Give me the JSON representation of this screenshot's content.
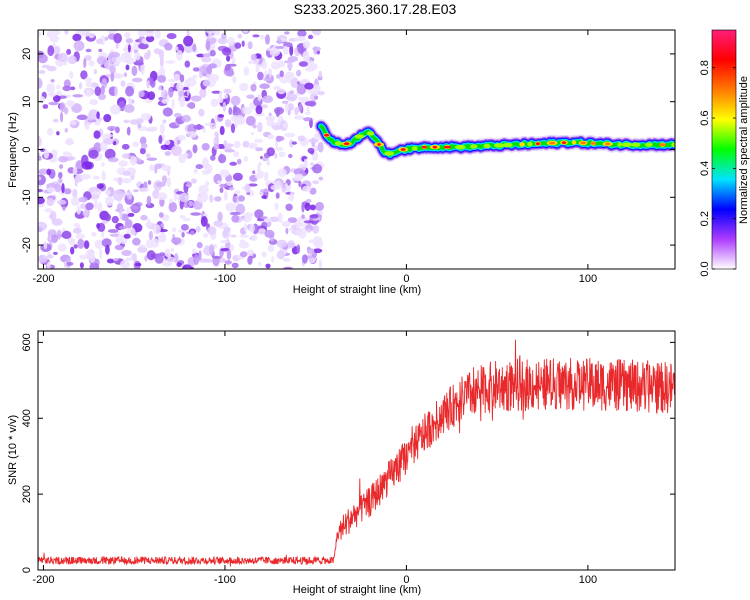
{
  "title": "S233.2025.360.17.28.E03",
  "chart_data": [
    {
      "type": "heatmap",
      "name": "spectrogram",
      "xlabel": "Height of straight line (km)",
      "ylabel": "Frequency (Hz)",
      "xlim": [
        -203,
        148
      ],
      "ylim": [
        -25,
        25
      ],
      "xticks": [
        -200,
        -100,
        0,
        100
      ],
      "xtick_labels": [
        "-200",
        "-100",
        "0",
        "100"
      ],
      "yticks": [
        -20,
        -10,
        0,
        10,
        20
      ],
      "ytick_labels": [
        "-20",
        "-10",
        "0",
        "10",
        "20"
      ],
      "noise_region_x": [
        -203,
        -47
      ],
      "line_center_hz": [
        [
          -47,
          5
        ],
        [
          -44,
          3
        ],
        [
          -40,
          1.5
        ],
        [
          -35,
          1
        ],
        [
          -30,
          1.5
        ],
        [
          -25,
          3
        ],
        [
          -21,
          4
        ],
        [
          -18,
          2.5
        ],
        [
          -15,
          1
        ],
        [
          -12,
          -0.5
        ],
        [
          -8,
          -1
        ],
        [
          -4,
          0
        ],
        [
          0,
          0
        ],
        [
          10,
          0.5
        ],
        [
          30,
          0.5
        ],
        [
          60,
          1
        ],
        [
          90,
          1.5
        ],
        [
          120,
          1
        ],
        [
          148,
          1
        ]
      ],
      "colorbar": {
        "label": "Normalized spectral amplitude",
        "range": [
          0,
          0.95
        ],
        "ticks": [
          0.0,
          0.2,
          0.4,
          0.6,
          0.8
        ],
        "tick_labels": [
          "0.0",
          "0.2",
          "0.4",
          "0.6",
          "0.8"
        ],
        "colors": [
          "#ffffff",
          "#ad3bff",
          "#0000ff",
          "#00e4ff",
          "#00ff00",
          "#ffff00",
          "#ff7a00",
          "#ff0000",
          "#ff1e7a"
        ]
      }
    },
    {
      "type": "line",
      "name": "snr",
      "xlabel": "Height of straight line (km)",
      "ylabel": "SNR (10 * v/v)",
      "xlim": [
        -203,
        148
      ],
      "ylim": [
        0,
        630
      ],
      "xticks": [
        -200,
        -100,
        0,
        100
      ],
      "xtick_labels": [
        "-200",
        "-100",
        "0",
        "100"
      ],
      "yticks": [
        0,
        200,
        400,
        600
      ],
      "ytick_labels": [
        "0",
        "200",
        "400",
        "600"
      ],
      "color": "#e8282a",
      "envelope": [
        [
          -203,
          25
        ],
        [
          -40,
          25
        ],
        [
          -38,
          95
        ],
        [
          -30,
          140
        ],
        [
          -20,
          180
        ],
        [
          -10,
          240
        ],
        [
          0,
          300
        ],
        [
          10,
          360
        ],
        [
          20,
          410
        ],
        [
          30,
          450
        ],
        [
          40,
          475
        ],
        [
          50,
          485
        ],
        [
          80,
          490
        ],
        [
          100,
          490
        ],
        [
          148,
          480
        ]
      ],
      "noise_amplitude": [
        [
          -203,
          10
        ],
        [
          -40,
          10
        ],
        [
          -35,
          35
        ],
        [
          -10,
          45
        ],
        [
          20,
          55
        ],
        [
          50,
          70
        ],
        [
          148,
          70
        ]
      ]
    }
  ]
}
